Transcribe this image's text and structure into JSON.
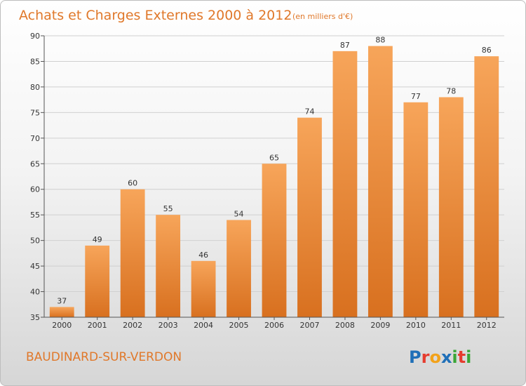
{
  "header": {
    "title": "Achats et Charges Externes 2000 à 2012",
    "unit": "(en milliers d'€)"
  },
  "footer": {
    "place": "BAUDINARD-SUR-VERDON"
  },
  "logo": {
    "text": "Proxiti",
    "letters": [
      {
        "ch": "P",
        "color": "#1f6fb8"
      },
      {
        "ch": "r",
        "color": "#e63c2f"
      },
      {
        "ch": "o",
        "color": "#f2a21a"
      },
      {
        "ch": "x",
        "color": "#1f6fb8"
      },
      {
        "ch": "i",
        "color": "#3aa637"
      },
      {
        "ch": "t",
        "color": "#e63c2f"
      },
      {
        "ch": "i",
        "color": "#3aa637"
      }
    ]
  },
  "colors": {
    "bar_top": "#f7a55a",
    "bar_bottom": "#d8701f",
    "grid": "#d0d0d0",
    "axis": "#555555",
    "accent": "#e0782a"
  },
  "chart_data": {
    "type": "bar",
    "categories": [
      "2000",
      "2001",
      "2002",
      "2003",
      "2004",
      "2005",
      "2006",
      "2007",
      "2008",
      "2009",
      "2010",
      "2011",
      "2012"
    ],
    "values": [
      37,
      49,
      60,
      55,
      46,
      54,
      65,
      74,
      87,
      88,
      77,
      78,
      86
    ],
    "ylim": [
      35,
      90
    ],
    "yticks": [
      35,
      40,
      45,
      50,
      55,
      60,
      65,
      70,
      75,
      80,
      85,
      90
    ],
    "grid": true,
    "data_labels": true
  }
}
